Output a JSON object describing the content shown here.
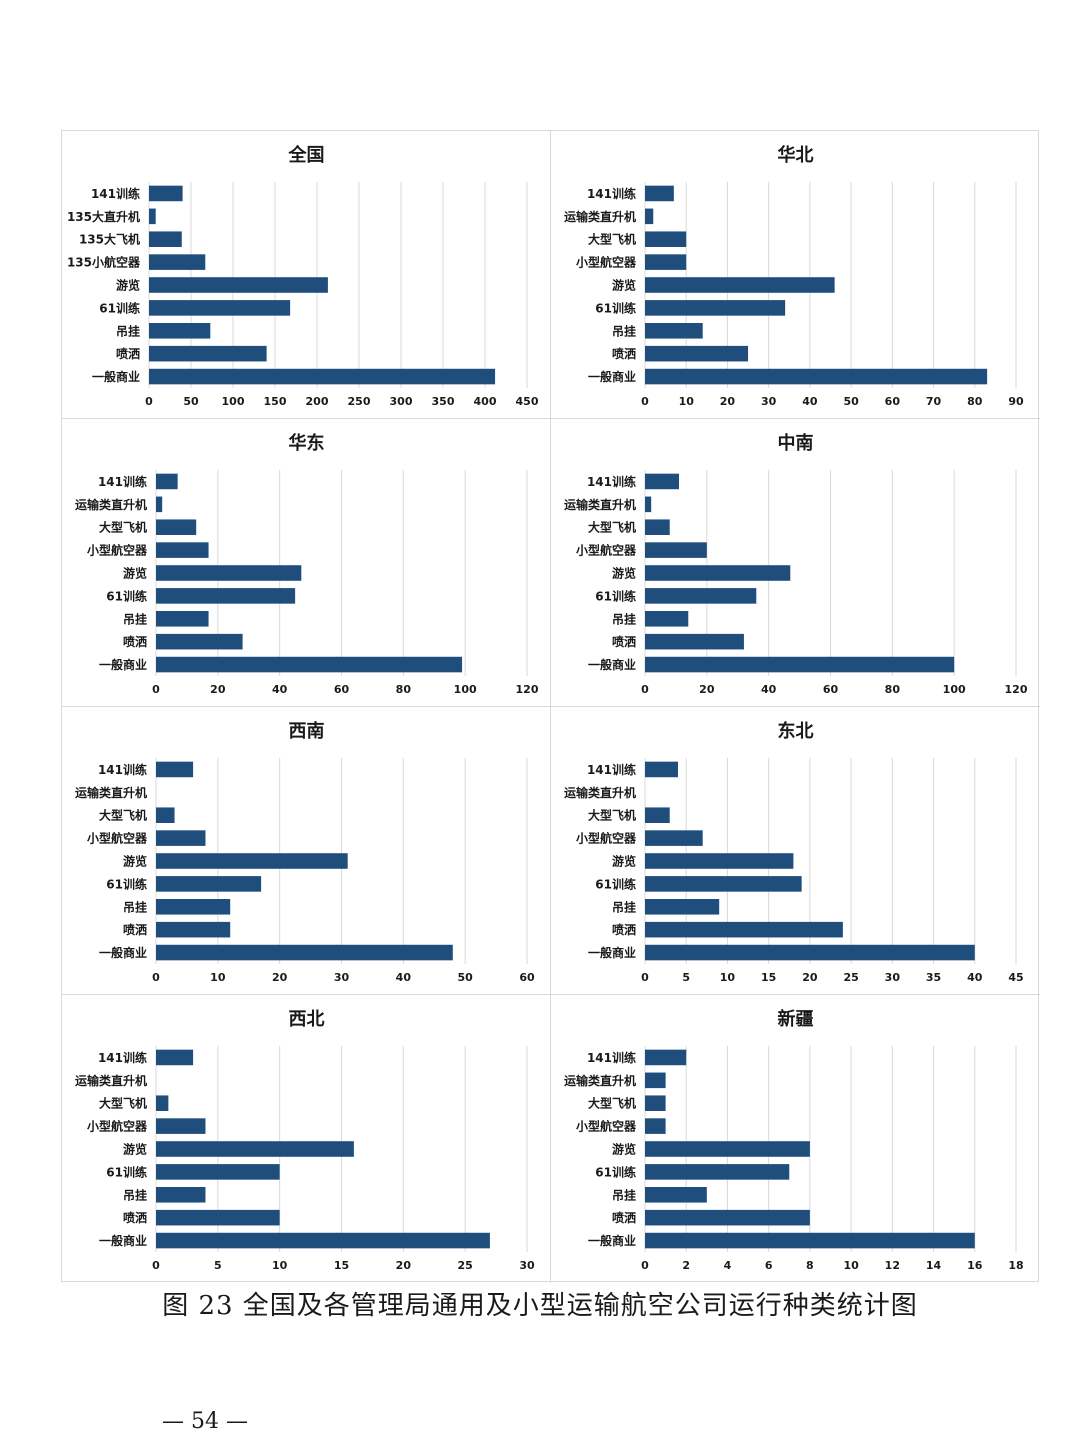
{
  "caption": "图 23 全国及各管理局通用及小型运输航空公司运行种类统计图",
  "page_number": "— 54 —",
  "colors": {
    "bar": "#1f4e7d",
    "grid": "#d9d9d9",
    "text": "#1a1a1a"
  },
  "chart_data": [
    {
      "type": "bar",
      "orientation": "horizontal",
      "title": "全国",
      "categories": [
        "141训练",
        "135大直升机",
        "135大飞机",
        "135小航空器",
        "游览",
        "61训练",
        "吊挂",
        "喷洒",
        "一般商业"
      ],
      "values": [
        40,
        8,
        39,
        67,
        213,
        168,
        73,
        140,
        412
      ],
      "xlim": [
        0,
        450
      ],
      "xticks": [
        0,
        50,
        100,
        150,
        200,
        250,
        300,
        350,
        400,
        450
      ],
      "grid": true
    },
    {
      "type": "bar",
      "orientation": "horizontal",
      "title": "华北",
      "categories": [
        "141训练",
        "运输类直升机",
        "大型飞机",
        "小型航空器",
        "游览",
        "61训练",
        "吊挂",
        "喷洒",
        "一般商业"
      ],
      "values": [
        7,
        2,
        10,
        10,
        46,
        34,
        14,
        25,
        83
      ],
      "xlim": [
        0,
        90
      ],
      "xticks": [
        0,
        10,
        20,
        30,
        40,
        50,
        60,
        70,
        80,
        90
      ],
      "grid": true
    },
    {
      "type": "bar",
      "orientation": "horizontal",
      "title": "华东",
      "categories": [
        "141训练",
        "运输类直升机",
        "大型飞机",
        "小型航空器",
        "游览",
        "61训练",
        "吊挂",
        "喷洒",
        "一般商业"
      ],
      "values": [
        7,
        2,
        13,
        17,
        47,
        45,
        17,
        28,
        99
      ],
      "xlim": [
        0,
        120
      ],
      "xticks": [
        0,
        20,
        40,
        60,
        80,
        100,
        120
      ],
      "grid": true
    },
    {
      "type": "bar",
      "orientation": "horizontal",
      "title": "中南",
      "categories": [
        "141训练",
        "运输类直升机",
        "大型飞机",
        "小型航空器",
        "游览",
        "61训练",
        "吊挂",
        "喷洒",
        "一般商业"
      ],
      "values": [
        11,
        2,
        8,
        20,
        47,
        36,
        14,
        32,
        100
      ],
      "xlim": [
        0,
        120
      ],
      "xticks": [
        0,
        20,
        40,
        60,
        80,
        100,
        120
      ],
      "grid": true
    },
    {
      "type": "bar",
      "orientation": "horizontal",
      "title": "西南",
      "categories": [
        "141训练",
        "运输类直升机",
        "大型飞机",
        "小型航空器",
        "游览",
        "61训练",
        "吊挂",
        "喷洒",
        "一般商业"
      ],
      "values": [
        6,
        0,
        3,
        8,
        31,
        17,
        12,
        12,
        48
      ],
      "xlim": [
        0,
        60
      ],
      "xticks": [
        0,
        10,
        20,
        30,
        40,
        50,
        60
      ],
      "grid": true
    },
    {
      "type": "bar",
      "orientation": "horizontal",
      "title": "东北",
      "categories": [
        "141训练",
        "运输类直升机",
        "大型飞机",
        "小型航空器",
        "游览",
        "61训练",
        "吊挂",
        "喷洒",
        "一般商业"
      ],
      "values": [
        4,
        0,
        3,
        7,
        18,
        19,
        9,
        24,
        40
      ],
      "xlim": [
        0,
        45
      ],
      "xticks": [
        0,
        5,
        10,
        15,
        20,
        25,
        30,
        35,
        40,
        45
      ],
      "grid": true
    },
    {
      "type": "bar",
      "orientation": "horizontal",
      "title": "西北",
      "categories": [
        "141训练",
        "运输类直升机",
        "大型飞机",
        "小型航空器",
        "游览",
        "61训练",
        "吊挂",
        "喷洒",
        "一般商业"
      ],
      "values": [
        3,
        0,
        1,
        4,
        16,
        10,
        4,
        10,
        27
      ],
      "xlim": [
        0,
        30
      ],
      "xticks": [
        0,
        5,
        10,
        15,
        20,
        25,
        30
      ],
      "grid": true
    },
    {
      "type": "bar",
      "orientation": "horizontal",
      "title": "新疆",
      "categories": [
        "141训练",
        "运输类直升机",
        "大型飞机",
        "小型航空器",
        "游览",
        "61训练",
        "吊挂",
        "喷洒",
        "一般商业"
      ],
      "values": [
        2,
        1,
        1,
        1,
        8,
        7,
        3,
        8,
        16
      ],
      "xlim": [
        0,
        18
      ],
      "xticks": [
        0,
        2,
        4,
        6,
        8,
        10,
        12,
        14,
        16,
        18
      ],
      "grid": true
    }
  ]
}
